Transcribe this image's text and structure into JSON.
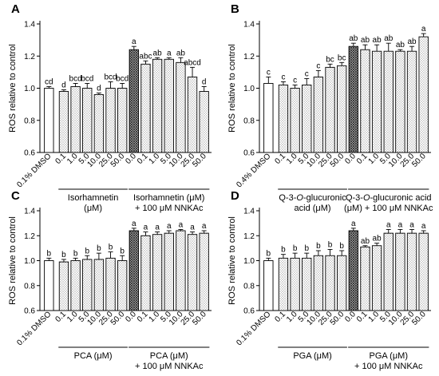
{
  "chart_data": [
    {
      "type": "bar",
      "panel_label": "A",
      "ylabel": "ROS relative to control",
      "ylim": [
        0.6,
        1.4
      ],
      "yticks": [
        "0.6",
        "0.8",
        "1.0",
        "1.2",
        "1.4"
      ],
      "categories": [
        "0.1% DMSO",
        "0.1",
        "1.0",
        "5.0",
        "10.0",
        "25.0",
        "50.0",
        "0.0",
        "0.1",
        "1.0",
        "5.0",
        "10.0",
        "25.0",
        "50.0"
      ],
      "values": [
        1.0,
        0.98,
        1.01,
        1.0,
        0.96,
        1.0,
        1.0,
        1.24,
        1.15,
        1.18,
        1.18,
        1.16,
        1.07,
        0.98
      ],
      "errors": [
        0.01,
        0.01,
        0.02,
        0.03,
        0.01,
        0.04,
        0.03,
        0.02,
        0.02,
        0.01,
        0.01,
        0.03,
        0.06,
        0.03
      ],
      "letters": [
        "cd",
        "d",
        "bcd",
        "bcd",
        "d",
        "bcd",
        "bcd",
        "a",
        "abc",
        "ab",
        "a",
        "ab",
        "abcd",
        "d"
      ],
      "groups": [
        {
          "label": "Isorhamnetin\n(μM)",
          "start": 1,
          "end": 6
        },
        {
          "label": "Isorhamnetin (μM)\n+ 100 μM NNKAc",
          "start": 7,
          "end": 13
        }
      ]
    },
    {
      "type": "bar",
      "panel_label": "B",
      "ylabel": "ROS relative to control",
      "ylim": [
        0.6,
        1.4
      ],
      "yticks": [
        "0.6",
        "0.8",
        "1.0",
        "1.2",
        "1.4"
      ],
      "categories": [
        "0.4% DMSO",
        "0.1",
        "1.0",
        "5.0",
        "10.0",
        "25.0",
        "50.0",
        "0.0",
        "0.1",
        "1.0",
        "5.0",
        "10.0",
        "25.0",
        "50.0"
      ],
      "values": [
        1.03,
        1.02,
        1.0,
        1.02,
        1.07,
        1.13,
        1.14,
        1.26,
        1.24,
        1.23,
        1.23,
        1.23,
        1.23,
        1.32
      ],
      "errors": [
        0.04,
        0.02,
        0.02,
        0.04,
        0.04,
        0.02,
        0.02,
        0.02,
        0.03,
        0.04,
        0.05,
        0.01,
        0.03,
        0.02
      ],
      "letters": [
        "c",
        "c",
        "c",
        "c",
        "c",
        "bc",
        "bc",
        "ab",
        "ab",
        "ab",
        "ab",
        "ab",
        "ab",
        "a"
      ],
      "groups": [
        {
          "label": "Q-3-O-glucuronic\nacid (μM)",
          "start": 1,
          "end": 6
        },
        {
          "label": "Q-3-O-glucuronic acid\n(μM) + 100 μM NNKAc",
          "start": 7,
          "end": 13
        }
      ]
    },
    {
      "type": "bar",
      "panel_label": "C",
      "ylabel": "ROS relative to control",
      "ylim": [
        0.6,
        1.4
      ],
      "yticks": [
        "0.6",
        "0.8",
        "1.0",
        "1.2",
        "1.4"
      ],
      "categories": [
        "0.1% DMSO",
        "0.1",
        "1.0",
        "5.0",
        "10.0",
        "25.0",
        "50.0",
        "0.0",
        "0.1",
        "1.0",
        "5.0",
        "10.0",
        "25.0",
        "50.0"
      ],
      "values": [
        1.0,
        0.99,
        1.0,
        1.01,
        1.01,
        1.02,
        1.0,
        1.24,
        1.2,
        1.21,
        1.22,
        1.24,
        1.21,
        1.22
      ],
      "errors": [
        0.02,
        0.02,
        0.02,
        0.03,
        0.05,
        0.05,
        0.04,
        0.02,
        0.03,
        0.02,
        0.02,
        0.01,
        0.02,
        0.02
      ],
      "letters": [
        "b",
        "b",
        "b",
        "b",
        "b",
        "b",
        "b",
        "a",
        "a",
        "a",
        "a",
        "a",
        "a",
        "a"
      ],
      "groups": [
        {
          "label": "PCA (μM)",
          "start": 1,
          "end": 6
        },
        {
          "label": "PCA (μM)\n+ 100 μM NNKAc",
          "start": 7,
          "end": 13
        }
      ]
    },
    {
      "type": "bar",
      "panel_label": "D",
      "ylabel": "ROS relative to control",
      "ylim": [
        0.6,
        1.4
      ],
      "yticks": [
        "0.6",
        "0.8",
        "1.0",
        "1.2",
        "1.4"
      ],
      "categories": [
        "0.1% DMSO",
        "0.1",
        "1.0",
        "5.0",
        "10.0",
        "25.0",
        "50.0",
        "0.0",
        "0.1",
        "1.0",
        "5.0",
        "10.0",
        "25.0",
        "50.0"
      ],
      "values": [
        1.0,
        1.02,
        1.02,
        1.02,
        1.04,
        1.04,
        1.04,
        1.24,
        1.11,
        1.12,
        1.22,
        1.22,
        1.22,
        1.22
      ],
      "errors": [
        0.02,
        0.03,
        0.04,
        0.04,
        0.04,
        0.05,
        0.04,
        0.02,
        0.01,
        0.02,
        0.03,
        0.03,
        0.03,
        0.02
      ],
      "letters": [
        "b",
        "b",
        "b",
        "b",
        "b",
        "b",
        "b",
        "a",
        "ab",
        "ab",
        "a",
        "a",
        "a",
        "a"
      ],
      "groups": [
        {
          "label": "PGA (μM)",
          "start": 1,
          "end": 6
        },
        {
          "label": "PGA (μM)\n+ 100 μM NNKAc",
          "start": 7,
          "end": 13
        }
      ]
    }
  ],
  "colors": {
    "control_bar": "#ffffff",
    "treatment_bar_pattern": "fine-dots",
    "nnkac_only_bar_pattern": "crosshatch",
    "ink": "#000000"
  }
}
